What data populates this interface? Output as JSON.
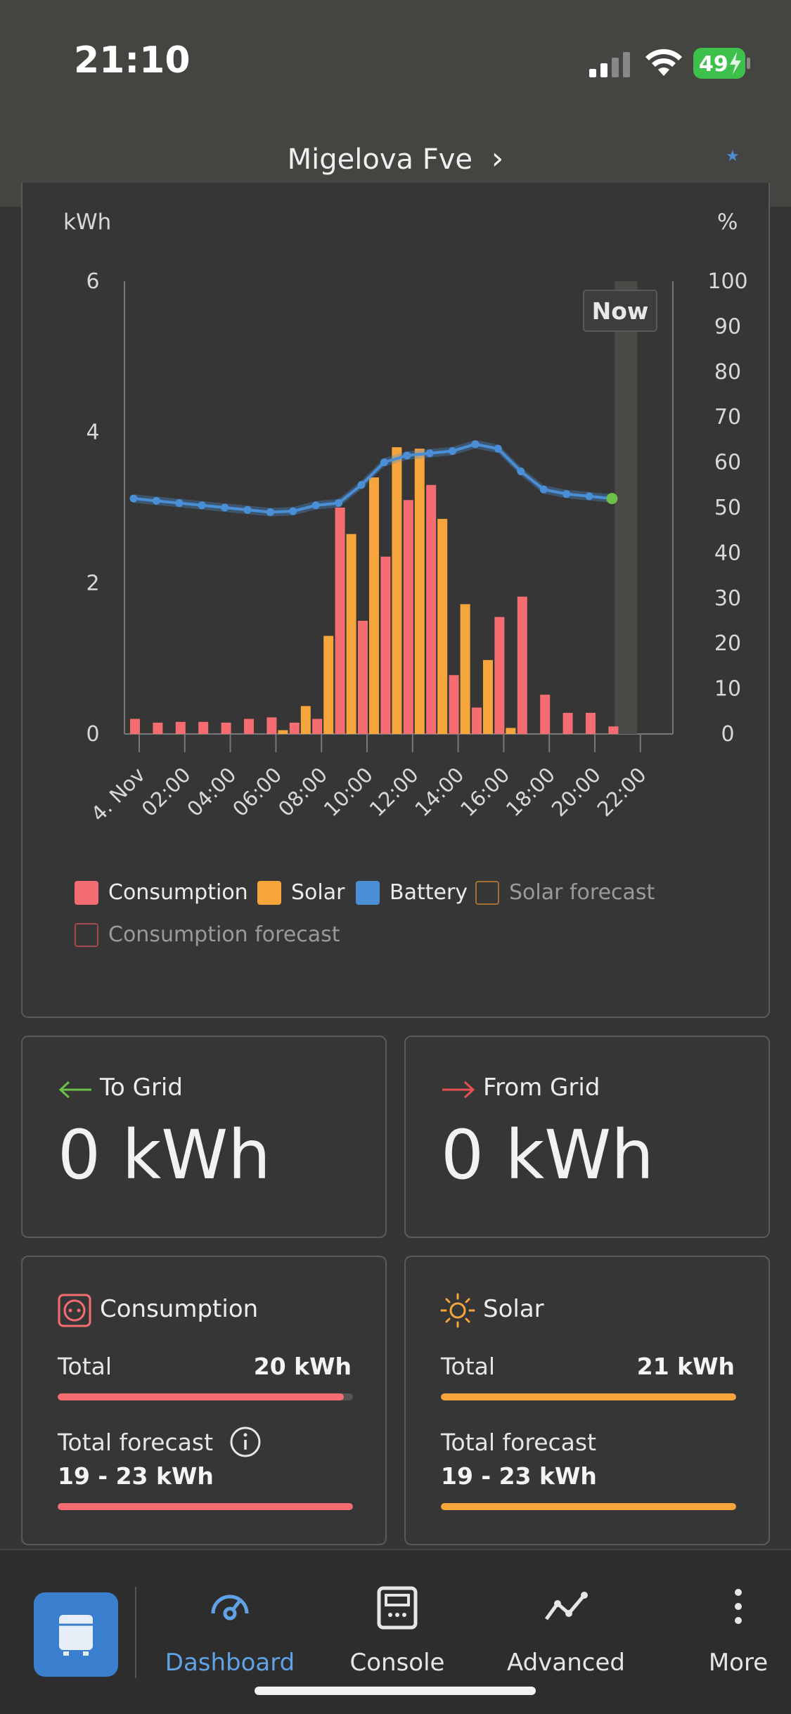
{
  "status": {
    "time": "21:10",
    "battery": "49"
  },
  "header": {
    "title": "Migelova Fve",
    "chevron": "›"
  },
  "chart": {
    "left_unit": "kWh",
    "right_unit": "%",
    "now_label": "Now",
    "legend": [
      {
        "label": "Consumption",
        "color": "#f56d70",
        "outline": false
      },
      {
        "label": "Solar",
        "color": "#f6a53b",
        "outline": false
      },
      {
        "label": "Battery",
        "color": "#4a8fd6",
        "outline": false
      },
      {
        "label": "Solar forecast",
        "color": "#a07034",
        "outline": true
      },
      {
        "label": "Consumption forecast",
        "color": "#a44a4c",
        "outline": true
      }
    ]
  },
  "chart_data": {
    "type": "bar",
    "title": "",
    "xlabel": "",
    "ylabel": "kWh",
    "ylabel_right": "%",
    "ylim": [
      0,
      6
    ],
    "ylim_right": [
      0,
      100
    ],
    "y_ticks": [
      "0",
      "2",
      "4",
      "6"
    ],
    "y_ticks_right": [
      "0",
      "10",
      "20",
      "30",
      "40",
      "50",
      "60",
      "70",
      "80",
      "90",
      "100"
    ],
    "x_ticks": [
      "4. Nov",
      "02:00",
      "04:00",
      "06:00",
      "08:00",
      "10:00",
      "12:00",
      "14:00",
      "16:00",
      "18:00",
      "20:00",
      "22:00"
    ],
    "hours": [
      "00",
      "01",
      "02",
      "03",
      "04",
      "05",
      "06",
      "07",
      "08",
      "09",
      "10",
      "11",
      "12",
      "13",
      "14",
      "15",
      "16",
      "17",
      "18",
      "19",
      "20",
      "21"
    ],
    "series": [
      {
        "name": "Consumption",
        "values": [
          0.2,
          0.15,
          0.16,
          0.16,
          0.15,
          0.2,
          0.22,
          0.15,
          0.2,
          3.0,
          1.5,
          2.35,
          3.1,
          3.3,
          0.78,
          0.35,
          1.55,
          1.82,
          0.52,
          0.28,
          0.28,
          0.1
        ]
      },
      {
        "name": "Solar",
        "values": [
          0,
          0,
          0,
          0,
          0,
          0,
          0.05,
          0.37,
          1.3,
          2.65,
          3.4,
          3.8,
          3.78,
          2.85,
          1.72,
          0.98,
          0.08,
          0,
          0,
          0,
          0,
          0
        ]
      },
      {
        "name": "Battery",
        "axis": "right",
        "values": [
          52,
          51.5,
          51,
          50.5,
          50,
          49.5,
          49,
          49.2,
          50.5,
          51,
          55,
          60,
          61.5,
          62,
          62.5,
          64,
          63,
          58,
          54,
          53,
          52.5,
          52
        ]
      }
    ],
    "now_hour": 21
  },
  "to_grid": {
    "label": "To Grid",
    "value": "0 kWh"
  },
  "from_grid": {
    "label": "From Grid",
    "value": "0 kWh"
  },
  "consumption": {
    "title": "Consumption",
    "total_label": "Total",
    "total_value": "20 kWh",
    "total_progress": 0.97,
    "forecast_label": "Total forecast",
    "forecast_value": "19 - 23 kWh",
    "forecast_progress": 1.0
  },
  "solar": {
    "title": "Solar",
    "total_label": "Total",
    "total_value": "21 kWh",
    "total_progress": 1.0,
    "forecast_label": "Total forecast",
    "forecast_value": "19 - 23 kWh",
    "forecast_progress": 1.0
  },
  "colors": {
    "consumption": "#f56d70",
    "solar": "#f6a53b",
    "battery": "#4a8fd6",
    "battery_now": "#6cc04a",
    "to_grid": "#6cc04a",
    "from_grid": "#e55050"
  },
  "tabs": [
    {
      "label": "Dashboard",
      "icon": "gauge-icon",
      "active": true
    },
    {
      "label": "Console",
      "icon": "console-icon",
      "active": false
    },
    {
      "label": "Advanced",
      "icon": "trend-icon",
      "active": false
    },
    {
      "label": "More",
      "icon": "more-icon",
      "active": false
    }
  ]
}
